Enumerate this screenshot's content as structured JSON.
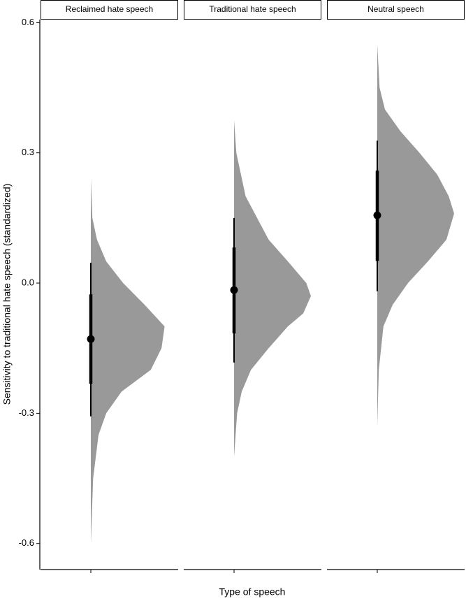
{
  "chart_data": {
    "type": "halfeye",
    "ylabel": "Sensitivity to traditional hate speech (standardized)",
    "xlabel": "Type of speech",
    "ylim": [
      -0.66,
      0.607
    ],
    "yticks": [
      0.6,
      0.3,
      {
        "value": 0,
        "label": "0.0"
      },
      -0.3,
      -0.6
    ],
    "color": "#999999",
    "panels": [
      {
        "name": "Reclaimed hate speech",
        "point": -0.129,
        "interval_66": [
          -0.232,
          -0.026
        ],
        "interval_95": [
          -0.307,
          0.047
        ],
        "density_y": [
          0.24,
          0.15,
          0.1,
          0.05,
          0.0,
          -0.05,
          -0.1,
          -0.15,
          -0.2,
          -0.25,
          -0.3,
          -0.35,
          -0.45,
          -0.6
        ],
        "density": [
          0,
          0.02,
          0.08,
          0.2,
          0.42,
          0.7,
          0.96,
          0.92,
          0.78,
          0.4,
          0.2,
          0.1,
          0.03,
          0
        ]
      },
      {
        "name": "Traditional hate speech",
        "point": -0.016,
        "interval_66": [
          -0.116,
          0.082
        ],
        "interval_95": [
          -0.183,
          0.15
        ],
        "density_y": [
          0.375,
          0.3,
          0.2,
          0.1,
          0.05,
          0.0,
          -0.03,
          -0.07,
          -0.1,
          -0.15,
          -0.2,
          -0.25,
          -0.3,
          -0.4
        ],
        "density": [
          0,
          0.03,
          0.15,
          0.45,
          0.7,
          0.94,
          1,
          0.9,
          0.7,
          0.45,
          0.22,
          0.1,
          0.04,
          0
        ]
      },
      {
        "name": "Neutral speech",
        "point": 0.156,
        "interval_66": [
          0.051,
          0.259
        ],
        "interval_95": [
          -0.019,
          0.328
        ],
        "density_y": [
          0.55,
          0.45,
          0.4,
          0.35,
          0.3,
          0.25,
          0.2,
          0.16,
          0.1,
          0.05,
          0.0,
          -0.05,
          -0.1,
          -0.2,
          -0.33
        ],
        "density": [
          0,
          0.03,
          0.1,
          0.3,
          0.55,
          0.78,
          0.93,
          1,
          0.9,
          0.66,
          0.4,
          0.2,
          0.08,
          0.02,
          0
        ]
      }
    ]
  }
}
